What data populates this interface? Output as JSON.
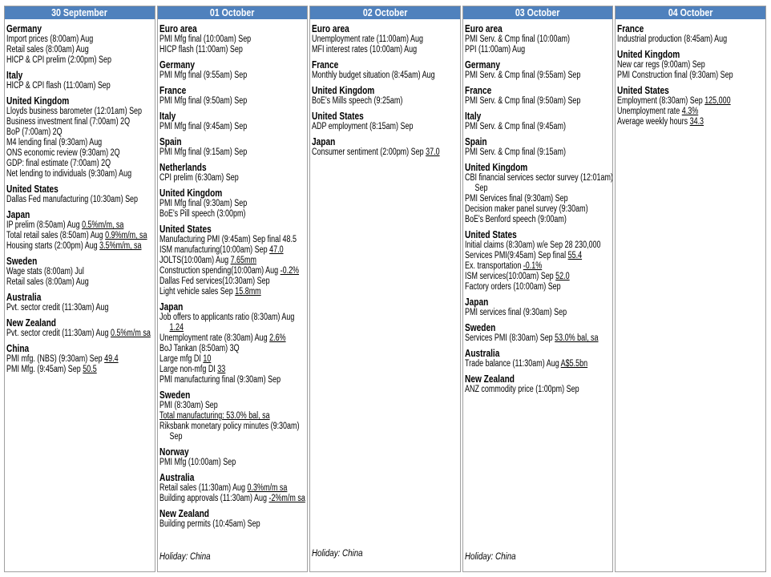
{
  "colors": {
    "header_bg": "#4f81bd",
    "header_text": "#ffffff",
    "border": "#a0a0a0"
  },
  "days": [
    {
      "title": "30 September",
      "holiday": "",
      "groups": [
        {
          "country": "Germany",
          "items": [
            {
              "text": "Import prices (8:00am) Aug"
            },
            {
              "text": "Retail sales (8:00am) Aug"
            },
            {
              "text": "HICP & CPI prelim (2:00pm) Sep"
            }
          ]
        },
        {
          "country": "Italy",
          "items": [
            {
              "text": "HICP & CPI flash (11:00am) Sep"
            }
          ]
        },
        {
          "country": "United Kingdom",
          "items": [
            {
              "text": "Lloyds business barometer (12:01am) Sep"
            },
            {
              "text": "Business investment final (7:00am) 2Q"
            },
            {
              "text": "BoP (7:00am) 2Q"
            },
            {
              "text": "M4 lending final (9:30am) Aug"
            },
            {
              "text": "ONS economic review (9:30am) 2Q"
            },
            {
              "text": "GDP: final estimate (7:00am) 2Q"
            },
            {
              "text": "Net lending to individuals (9:30am) Aug"
            }
          ]
        },
        {
          "country": "United States",
          "items": [
            {
              "text": "Dallas Fed manufacturing (10:30am) Sep"
            }
          ]
        },
        {
          "country": "Japan",
          "items": [
            {
              "text": "IP prelim (8:50am) Aug ",
              "value": "0.5%m/m, sa"
            },
            {
              "text": "Total retail sales (8:50am) Aug ",
              "value": "0.9%m/m, sa"
            },
            {
              "text": "Housing starts (2:00pm) Aug ",
              "value": "3.5%m/m, sa"
            }
          ]
        },
        {
          "country": "Sweden",
          "items": [
            {
              "text": "Wage stats (8:00am) Jul"
            },
            {
              "text": "Retail sales (8:00am) Aug"
            }
          ]
        },
        {
          "country": "Australia",
          "items": [
            {
              "text": "Pvt. sector credit (11:30am) Aug"
            }
          ]
        },
        {
          "country": "New Zealand",
          "items": [
            {
              "text": "Pvt. sector credit (11:30am) Aug ",
              "value": "0.5%m/m sa"
            }
          ]
        },
        {
          "country": "China",
          "items": [
            {
              "text": "PMI mfg. (NBS) (9:30am) Sep ",
              "value": "49.4"
            },
            {
              "text": "PMI Mfg. (9:45am) Sep ",
              "value": "50.5"
            }
          ]
        }
      ]
    },
    {
      "title": "01 October",
      "holiday": "Holiday: China",
      "groups": [
        {
          "country": "Euro area",
          "items": [
            {
              "text": "PMI Mfg final (10:00am) Sep"
            },
            {
              "text": "HICP flash (11:00am) Sep"
            }
          ]
        },
        {
          "country": "Germany",
          "items": [
            {
              "text": "PMI Mfg final (9:55am) Sep"
            }
          ]
        },
        {
          "country": "France",
          "items": [
            {
              "text": "PMI Mfg final (9:50am) Sep"
            }
          ]
        },
        {
          "country": "Italy",
          "items": [
            {
              "text": "PMI Mfg final (9:45am) Sep"
            }
          ]
        },
        {
          "country": "Spain",
          "items": [
            {
              "text": "PMI Mfg final (9:15am) Sep"
            }
          ]
        },
        {
          "country": "Netherlands",
          "items": [
            {
              "text": "CPI prelim (6:30am) Sep"
            }
          ]
        },
        {
          "country": "United Kingdom",
          "items": [
            {
              "text": "PMI Mfg final (9:30am) Sep"
            },
            {
              "text": "BoE's Pill speech (3:00pm)"
            }
          ]
        },
        {
          "country": "United States",
          "items": [
            {
              "text": "Manufacturing PMI (9:45am) Sep final 48.5"
            },
            {
              "text": "ISM manufacturing(10:00am) Sep ",
              "value": "47.0"
            },
            {
              "text": "JOLTS(10:00am) Aug ",
              "value": "7.65mm"
            },
            {
              "text": "Construction spending(10:00am) Aug ",
              "value": "-0.2%"
            },
            {
              "text": "Dallas Fed services(10:30am) Sep"
            },
            {
              "text": "Light vehicle sales Sep ",
              "value": "15.8mm"
            }
          ]
        },
        {
          "country": "Japan",
          "items": [
            {
              "text": "Job offers to applicants ratio (8:30am) Aug ",
              "value": "1.24"
            },
            {
              "text": "Unemployment rate (8:30am) Aug ",
              "value": "2.6%"
            },
            {
              "text": "BoJ Tankan (8:50am) 3Q"
            },
            {
              "text": "Large mfg DI ",
              "value": "10"
            },
            {
              "text": "Large non-mfg DI ",
              "value": "33"
            },
            {
              "text": "PMI manufacturing final (9:30am) Sep"
            }
          ]
        },
        {
          "country": "Sweden",
          "items": [
            {
              "text": "PMI (8:30am) Sep"
            },
            {
              "text": "",
              "value": "Total manufacturing: 53.0%  bal, sa"
            },
            {
              "text": "Riksbank monetary policy minutes (9:30am) Sep"
            }
          ]
        },
        {
          "country": "Norway",
          "items": [
            {
              "text": "PMI Mfg (10:00am) Sep"
            }
          ]
        },
        {
          "country": "Australia",
          "items": [
            {
              "text": "Retail sales (11:30am) Aug ",
              "value": "0.3%m/m sa"
            },
            {
              "text": "Building approvals (11:30am) Aug ",
              "value": "-2%m/m sa"
            }
          ]
        },
        {
          "country": "New Zealand",
          "items": [
            {
              "text": "Building permits (10:45am) Sep"
            }
          ]
        }
      ]
    },
    {
      "title": "02 October",
      "holiday": "Holiday: China",
      "groups": [
        {
          "country": "Euro area",
          "items": [
            {
              "text": "Unemployment rate (11:00am) Aug"
            },
            {
              "text": "MFI interest rates (10:00am) Aug"
            }
          ]
        },
        {
          "country": "France",
          "items": [
            {
              "text": "Monthly budget situation (8:45am) Aug"
            }
          ]
        },
        {
          "country": "United Kingdom",
          "items": [
            {
              "text": "BoE's Mills speech (9:25am)"
            }
          ]
        },
        {
          "country": "United States",
          "items": [
            {
              "text": "ADP employment (8:15am) Sep"
            }
          ]
        },
        {
          "country": "Japan",
          "items": [
            {
              "text": "Consumer sentiment (2:00pm) Sep ",
              "value": "37.0"
            }
          ]
        }
      ]
    },
    {
      "title": "03 October",
      "holiday": "Holiday: China",
      "groups": [
        {
          "country": "Euro area",
          "items": [
            {
              "text": "PMI Serv. & Cmp final (10:00am)"
            },
            {
              "text": "PPI (11:00am) Aug"
            }
          ]
        },
        {
          "country": "Germany",
          "items": [
            {
              "text": "PMI Serv. & Cmp final (9:55am) Sep"
            }
          ]
        },
        {
          "country": "France",
          "items": [
            {
              "text": "PMI Serv. & Cmp final (9:50am) Sep"
            }
          ]
        },
        {
          "country": "Italy",
          "items": [
            {
              "text": "PMI Serv. & Cmp final (9:45am)"
            }
          ]
        },
        {
          "country": "Spain",
          "items": [
            {
              "text": "PMI Serv. & Cmp final (9:15am)"
            }
          ]
        },
        {
          "country": "United Kingdom",
          "items": [
            {
              "text": "CBI financial services sector survey (12:01am) Sep"
            },
            {
              "text": "PMI Services final (9:30am) Sep"
            },
            {
              "text": "Decision maker panel survey (9:30am)"
            },
            {
              "text": "BoE's Benford speech (9:00am)"
            }
          ]
        },
        {
          "country": "United States",
          "items": [
            {
              "text": "Initial claims (8:30am) w/e Sep 28 230,000"
            },
            {
              "text": "Services PMI(9:45am) Sep final ",
              "value": "55.4"
            },
            {
              "text": "Ex. transportation ",
              "value": "-0.1%"
            },
            {
              "text": "ISM services(10:00am) Sep ",
              "value": "52.0"
            },
            {
              "text": "Factory orders (10:00am) Sep"
            }
          ]
        },
        {
          "country": "Japan",
          "items": [
            {
              "text": "PMI services final (9:30am) Sep"
            }
          ]
        },
        {
          "country": "Sweden",
          "items": [
            {
              "text": "Services PMI (8:30am) Sep ",
              "value": "53.0%  bal, sa"
            }
          ]
        },
        {
          "country": "Australia",
          "items": [
            {
              "text": "Trade balance (11:30am) Aug ",
              "value": "A$5.5bn"
            }
          ]
        },
        {
          "country": "New Zealand",
          "items": [
            {
              "text": "ANZ commodity price (1:00pm) Sep"
            }
          ]
        }
      ]
    },
    {
      "title": "04 October",
      "holiday": "",
      "groups": [
        {
          "country": "France",
          "items": [
            {
              "text": "Industrial production (8:45am) Aug"
            }
          ]
        },
        {
          "country": "United Kingdom",
          "items": [
            {
              "text": "New car regs (9:00am) Sep"
            },
            {
              "text": "PMI Construction final (9:30am) Sep"
            }
          ]
        },
        {
          "country": "United States",
          "items": [
            {
              "text": "Employment (8:30am) Sep ",
              "value": "125,000"
            },
            {
              "text": "Unemployment rate ",
              "value": "4.3%"
            },
            {
              "text": "Average weekly hours ",
              "value": "34.3"
            }
          ]
        }
      ]
    }
  ]
}
